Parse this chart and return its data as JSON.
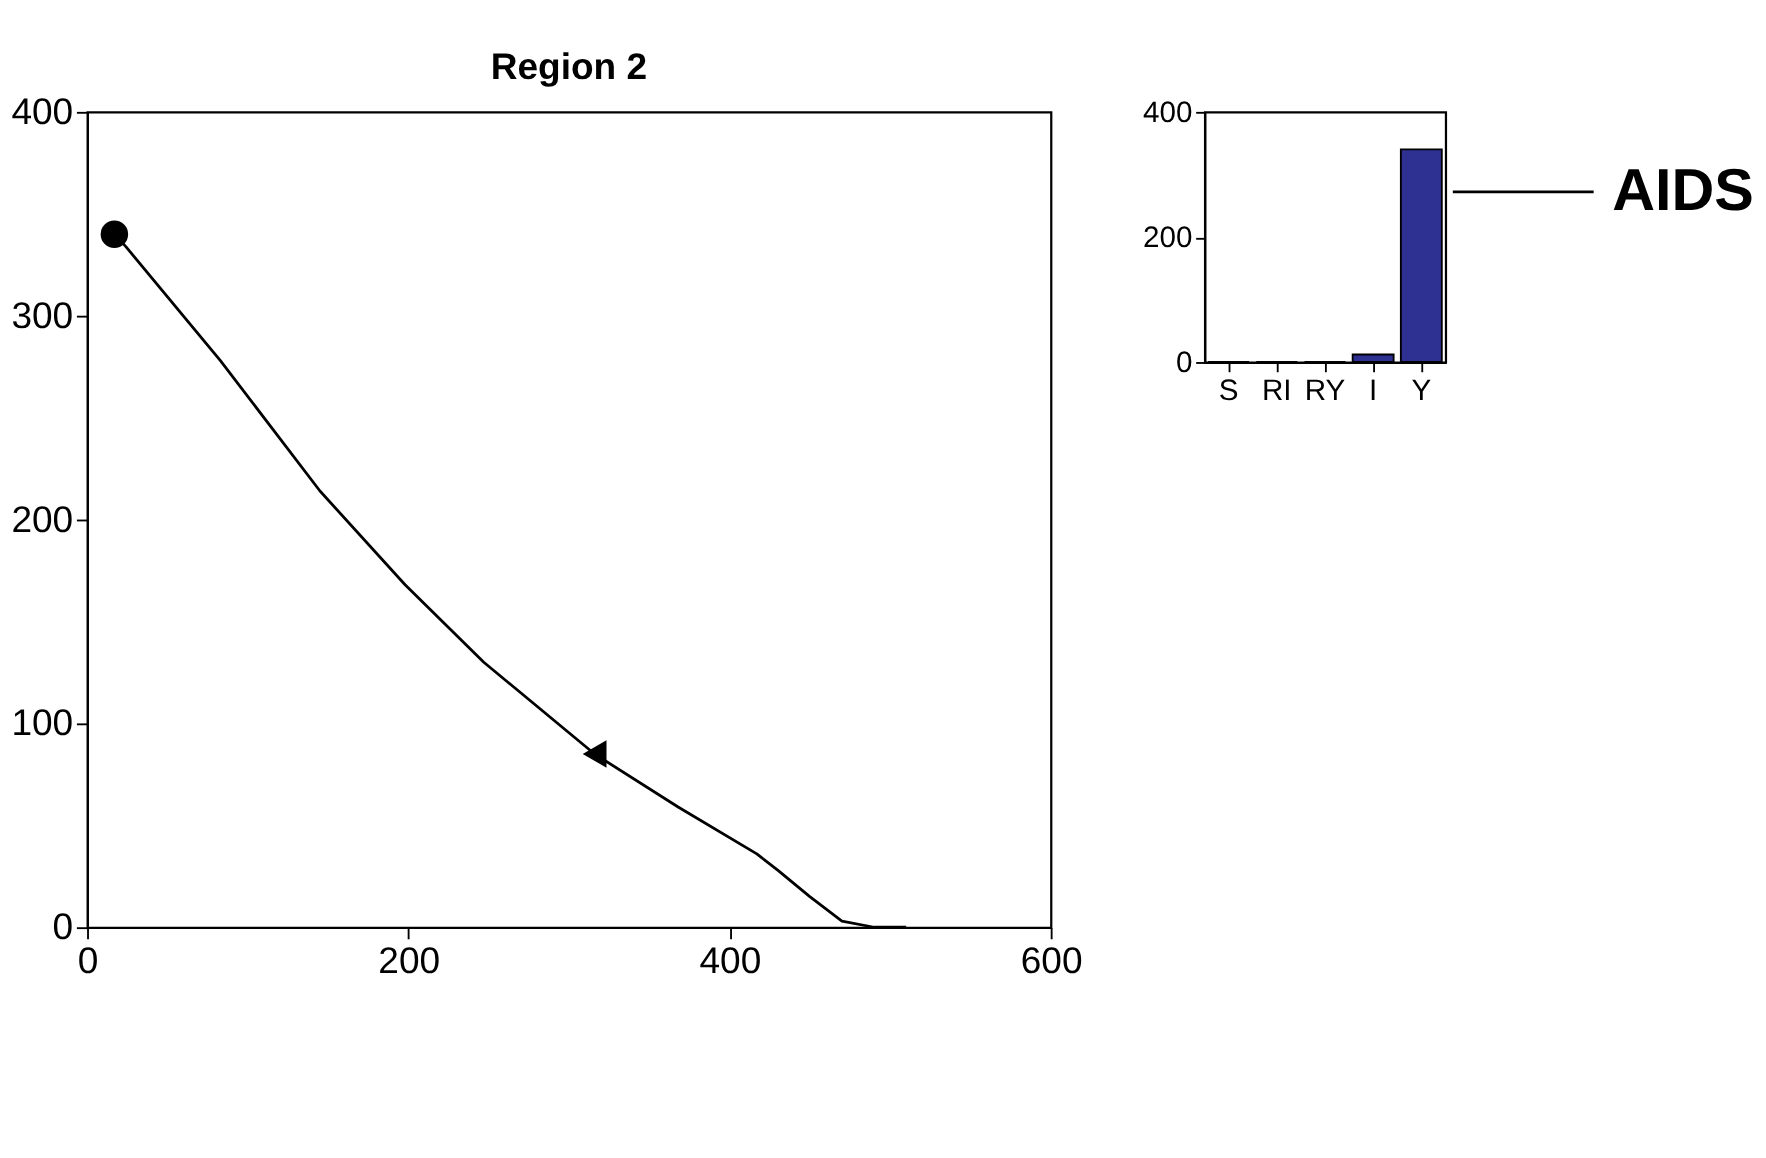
{
  "chart_data": [
    {
      "type": "line",
      "title": "Region 2",
      "xlim": [
        0,
        600
      ],
      "xticks": [
        0,
        200,
        400,
        600
      ],
      "ylim": [
        0,
        400
      ],
      "yticks": [
        0,
        100,
        200,
        300,
        400
      ],
      "grid": false,
      "line_style": "solid",
      "series": [
        {
          "type": "line",
          "color": "#000000",
          "x": [
            17,
            24,
            83,
            145,
            198,
            247,
            316,
            368,
            417,
            430,
            450,
            470,
            490,
            510
          ],
          "values": [
            340,
            334,
            278,
            214,
            168,
            130,
            85,
            59,
            36,
            28,
            15,
            3,
            0,
            0
          ]
        },
        {
          "type": "scatter",
          "color": "#000000",
          "marker": "circle",
          "x": [
            17
          ],
          "values": [
            340
          ]
        },
        {
          "type": "scatter",
          "color": "#000000",
          "marker": "triangle",
          "x": [
            316
          ],
          "values": [
            85
          ]
        }
      ]
    },
    {
      "type": "bar",
      "categories": [
        "S",
        "RI",
        "RY",
        "I",
        "Y"
      ],
      "values": [
        0,
        0,
        0,
        12,
        340
      ],
      "color": "#2e3192",
      "ylim": [
        0,
        400
      ],
      "yticks": [
        0,
        200,
        400
      ],
      "grid": false,
      "annotations": [
        "AIDS"
      ]
    }
  ]
}
